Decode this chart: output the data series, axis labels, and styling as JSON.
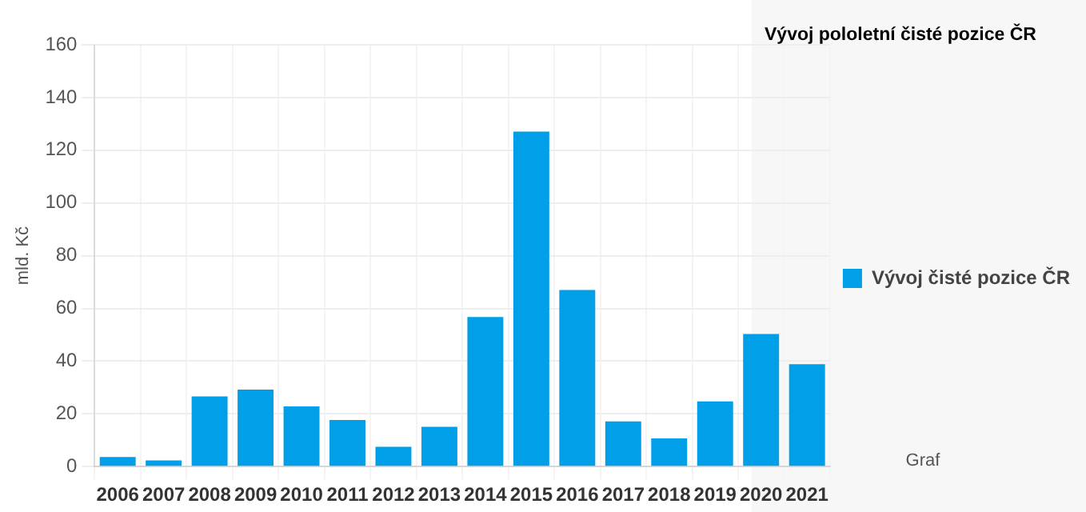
{
  "chart_data": {
    "type": "bar",
    "title": "Vývoj pololetní čisté pozice ČR",
    "ylabel": "mld. Kč",
    "categories": [
      "2006",
      "2007",
      "2008",
      "2009",
      "2010",
      "2011",
      "2012",
      "2013",
      "2014",
      "2015",
      "2016",
      "2017",
      "2018",
      "2019",
      "2020",
      "2021"
    ],
    "series": [
      {
        "name": "Vývoj čisté pozice ČR",
        "color": "#009fe8",
        "values": [
          3.6,
          2.3,
          26.6,
          29.2,
          22.8,
          17.7,
          7.5,
          15.1,
          56.7,
          127.1,
          67,
          17.1,
          10.7,
          24.7,
          50.3,
          38.8
        ]
      }
    ],
    "ylim": [
      0,
      160
    ],
    "yticks": [
      0,
      20,
      40,
      60,
      80,
      100,
      120,
      140,
      160
    ],
    "grid": true,
    "legend": "right",
    "annotations": [
      "Graf"
    ]
  }
}
